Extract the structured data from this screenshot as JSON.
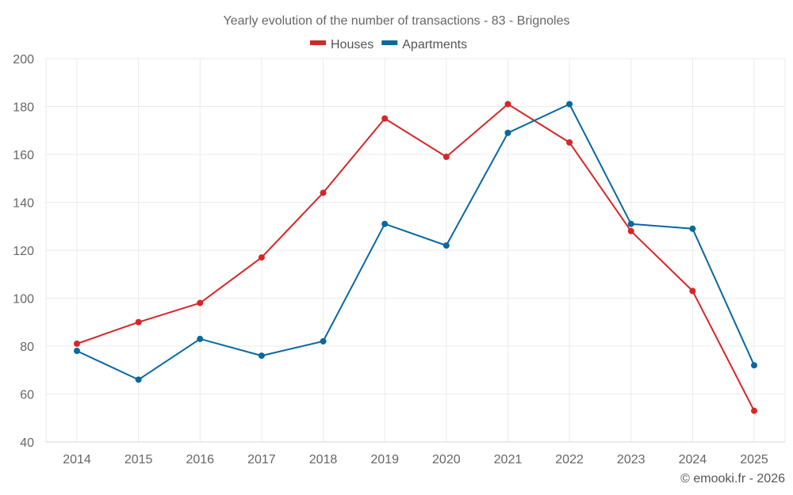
{
  "chart_data": {
    "type": "line",
    "title": "Yearly evolution of the number of transactions - 83 - Brignoles",
    "xlabel": "",
    "ylabel": "",
    "x": [
      "2014",
      "2015",
      "2016",
      "2017",
      "2018",
      "2019",
      "2020",
      "2021",
      "2022",
      "2023",
      "2024",
      "2025"
    ],
    "ylim": [
      40,
      200
    ],
    "yticks": [
      40,
      60,
      80,
      100,
      120,
      140,
      160,
      180,
      200
    ],
    "grid": true,
    "legend_position": "top-center",
    "series": [
      {
        "name": "Houses",
        "color": "#d62728",
        "values": [
          81,
          90,
          98,
          117,
          144,
          175,
          159,
          181,
          165,
          128,
          103,
          53
        ]
      },
      {
        "name": "Apartments",
        "color": "#0868a0",
        "values": [
          78,
          66,
          83,
          76,
          82,
          131,
          122,
          169,
          181,
          131,
          129,
          72
        ]
      }
    ]
  },
  "credit": "© emooki.fr - 2026"
}
